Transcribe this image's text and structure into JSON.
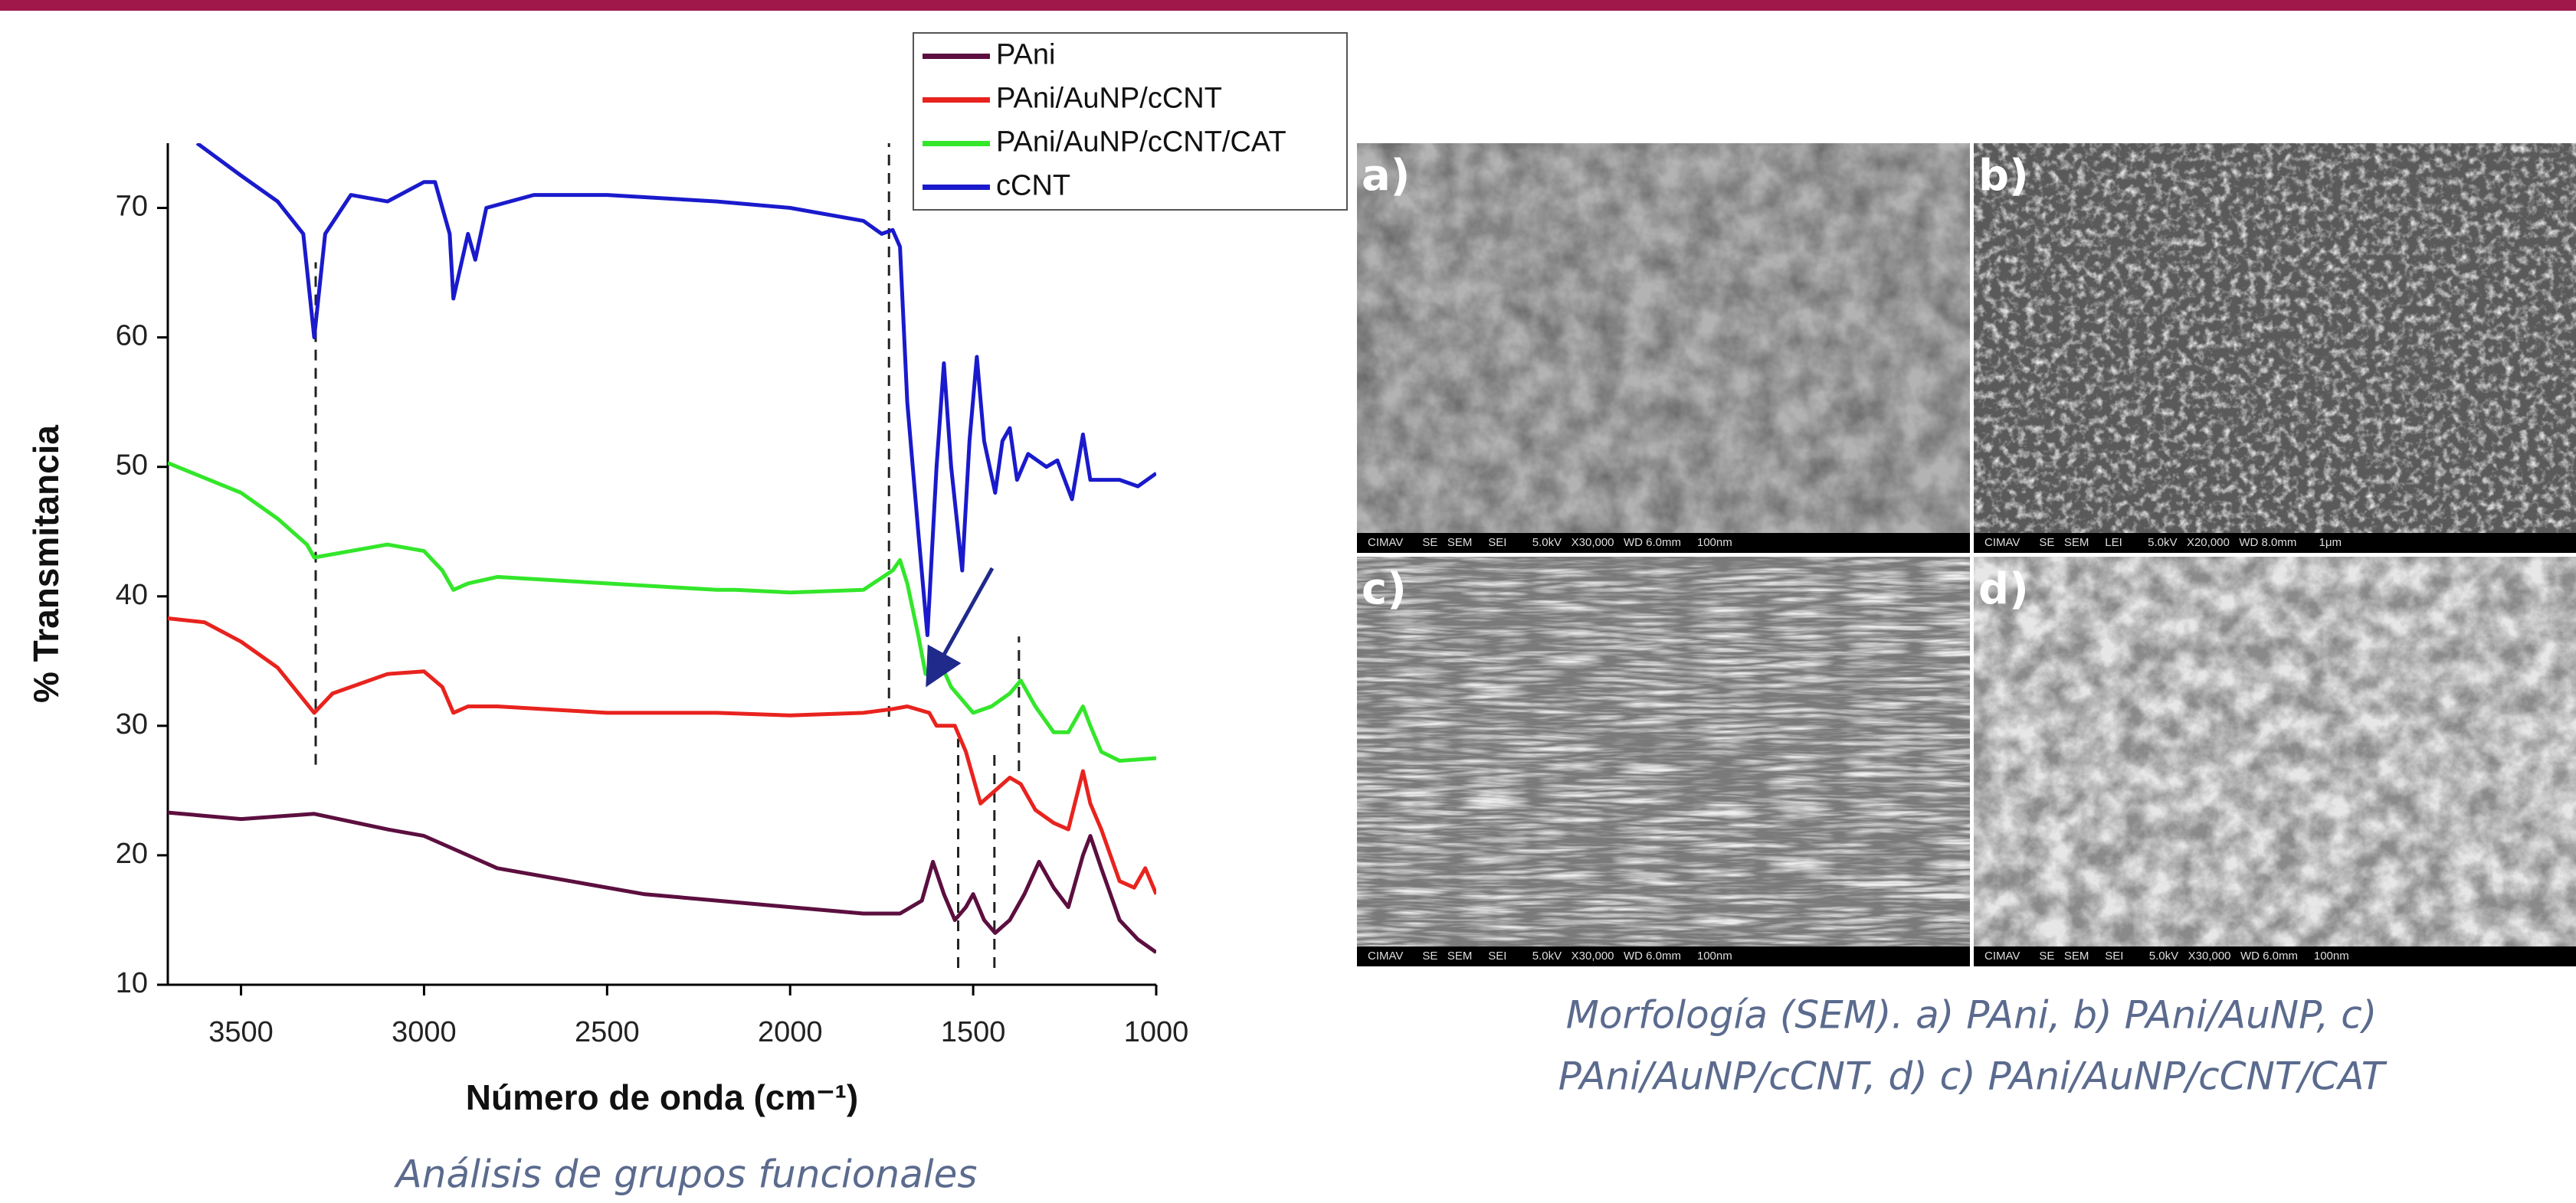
{
  "chart_data": {
    "type": "line",
    "xlabel": "Número de onda (cm⁻¹)",
    "ylabel": "% Transmitancia",
    "xlim": [
      3700,
      1000
    ],
    "ylim": [
      10,
      75
    ],
    "xticks": [
      3500,
      3000,
      2500,
      2000,
      1500,
      1000
    ],
    "yticks": [
      10,
      20,
      30,
      40,
      50,
      60,
      70
    ],
    "legend": "upper right",
    "series": [
      {
        "name": "PAni",
        "color": "#5c0f3f",
        "x": [
          3700,
          3500,
          3300,
          3100,
          3000,
          2800,
          2600,
          2400,
          2200,
          2000,
          1800,
          1700,
          1640,
          1610,
          1580,
          1550,
          1520,
          1500,
          1470,
          1440,
          1400,
          1360,
          1320,
          1280,
          1240,
          1200,
          1180,
          1150,
          1100,
          1050,
          1000
        ],
        "values": [
          23.3,
          22.8,
          23.2,
          22,
          21.5,
          19,
          18,
          17,
          16.5,
          16,
          15.5,
          15.5,
          16.5,
          19.5,
          17,
          15,
          16,
          17,
          15,
          14,
          15,
          17,
          19.5,
          17.5,
          16,
          20,
          21.5,
          19,
          15,
          13.5,
          12.5
        ]
      },
      {
        "name": "PAni/AuNP/cCNT",
        "color": "#e8231e",
        "x": [
          3700,
          3600,
          3500,
          3400,
          3300,
          3250,
          3100,
          3000,
          2950,
          2920,
          2880,
          2800,
          2500,
          2200,
          2000,
          1800,
          1720,
          1680,
          1620,
          1600,
          1550,
          1520,
          1480,
          1440,
          1400,
          1370,
          1330,
          1280,
          1240,
          1200,
          1180,
          1150,
          1100,
          1060,
          1030,
          1000
        ],
        "values": [
          38.3,
          38,
          36.5,
          34.5,
          31,
          32.5,
          34,
          34.2,
          33,
          31,
          31.5,
          31.5,
          31,
          31,
          30.8,
          31,
          31.3,
          31.5,
          31,
          30,
          30,
          28,
          24,
          25,
          26,
          25.5,
          23.5,
          22.5,
          22,
          26.5,
          24,
          22,
          18,
          17.5,
          19,
          17
        ]
      },
      {
        "name": "PAni/AuNP/cCNT/CAT",
        "color": "#33e62a",
        "x": [
          3700,
          3500,
          3400,
          3320,
          3300,
          3200,
          3100,
          3000,
          2950,
          2920,
          2880,
          2800,
          2500,
          2200,
          2150,
          2000,
          1800,
          1720,
          1700,
          1680,
          1650,
          1630,
          1600,
          1560,
          1530,
          1500,
          1450,
          1400,
          1370,
          1330,
          1280,
          1240,
          1200,
          1180,
          1150,
          1100,
          1000
        ],
        "values": [
          50.3,
          48,
          46,
          44,
          43,
          43.5,
          44,
          43.5,
          42,
          40.5,
          41,
          41.5,
          41,
          40.5,
          40.5,
          40.3,
          40.5,
          42,
          42.8,
          41,
          37,
          34,
          35.5,
          33,
          32,
          31,
          31.5,
          32.5,
          33.5,
          31.5,
          29.5,
          29.5,
          31.5,
          30,
          28,
          27.3,
          27.5
        ]
      },
      {
        "name": "cCNT",
        "color": "#1a1acc",
        "x": [
          3620,
          3500,
          3400,
          3330,
          3300,
          3270,
          3200,
          3100,
          3000,
          2970,
          2930,
          2920,
          2880,
          2860,
          2830,
          2700,
          2500,
          2200,
          2000,
          1800,
          1750,
          1720,
          1700,
          1680,
          1650,
          1625,
          1600,
          1580,
          1560,
          1530,
          1510,
          1490,
          1470,
          1440,
          1420,
          1400,
          1380,
          1350,
          1300,
          1270,
          1230,
          1200,
          1180,
          1100,
          1050,
          1000
        ],
        "values": [
          75,
          72.5,
          70.5,
          68,
          60,
          68,
          71,
          70.5,
          72,
          72,
          68,
          63,
          68,
          66,
          70,
          71,
          71,
          70.5,
          70,
          69,
          68,
          68.3,
          67,
          55,
          45,
          37,
          50,
          58,
          50,
          42,
          52,
          58.5,
          52,
          48,
          52,
          53,
          49,
          51,
          50,
          50.5,
          47.5,
          52.5,
          49,
          49,
          48.5,
          49.5
        ]
      }
    ],
    "reference_lines": [
      {
        "x": 3296,
        "y": [
          27,
          65.8
        ]
      },
      {
        "x": 1730,
        "y": [
          30.7,
          75
        ]
      },
      {
        "x": 1541,
        "y": [
          11.3,
          29
        ]
      },
      {
        "x": 1442,
        "y": [
          11.3,
          27.8
        ]
      },
      {
        "x": 1375,
        "y": [
          26.5,
          36.9
        ]
      }
    ]
  },
  "chart_caption": "Análisis de grupos funcionales",
  "sem": {
    "panels": [
      {
        "label": "a)",
        "info": "CIMAV      SE   SEM     SEI        5.0kV   X30,000   WD 6.0mm     100nm"
      },
      {
        "label": "b)",
        "info": "CIMAV      SE   SEM     LEI        5.0kV   X20,000   WD 8.0mm       1μm"
      },
      {
        "label": "c)",
        "info": "CIMAV      SE   SEM     SEI        5.0kV   X30,000   WD 6.0mm     100nm"
      },
      {
        "label": "d)",
        "info": "CIMAV      SE   SEM     SEI        5.0kV   X30,000   WD 6.0mm     100nm"
      }
    ],
    "caption": [
      "Morfología (SEM). a) PAni, b) PAni/AuNP, c)",
      "PAni/AuNP/cCNT, d) c) PAni/AuNP/cCNT/CAT"
    ]
  }
}
